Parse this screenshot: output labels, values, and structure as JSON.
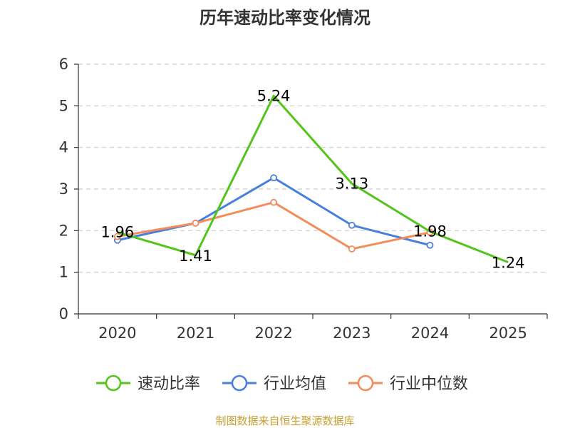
{
  "chart_data": {
    "type": "line",
    "title": "历年速动比率变化情况",
    "xlabel": "",
    "ylabel": "",
    "categories": [
      "2020",
      "2021",
      "2022",
      "2023",
      "2024",
      "2025"
    ],
    "ylim": [
      0,
      6
    ],
    "yticks": [
      0,
      1,
      2,
      3,
      4,
      5,
      6
    ],
    "grid": true,
    "legend_position": "bottom",
    "series": [
      {
        "name": "速动比率",
        "color": "#52c41a",
        "values": [
          1.96,
          1.41,
          5.24,
          3.13,
          1.98,
          1.24
        ],
        "labels": [
          "1.96",
          "1.41",
          "5.24",
          "3.13",
          "1.98",
          "1.24"
        ]
      },
      {
        "name": "行业均值",
        "color": "#4a7fdb",
        "values": [
          1.77,
          2.18,
          3.27,
          2.13,
          1.65,
          null
        ]
      },
      {
        "name": "行业中位数",
        "color": "#f28c5a",
        "values": [
          1.86,
          2.18,
          2.68,
          1.56,
          1.96,
          null
        ]
      }
    ],
    "source": "制图数据来自恒生聚源数据库"
  }
}
